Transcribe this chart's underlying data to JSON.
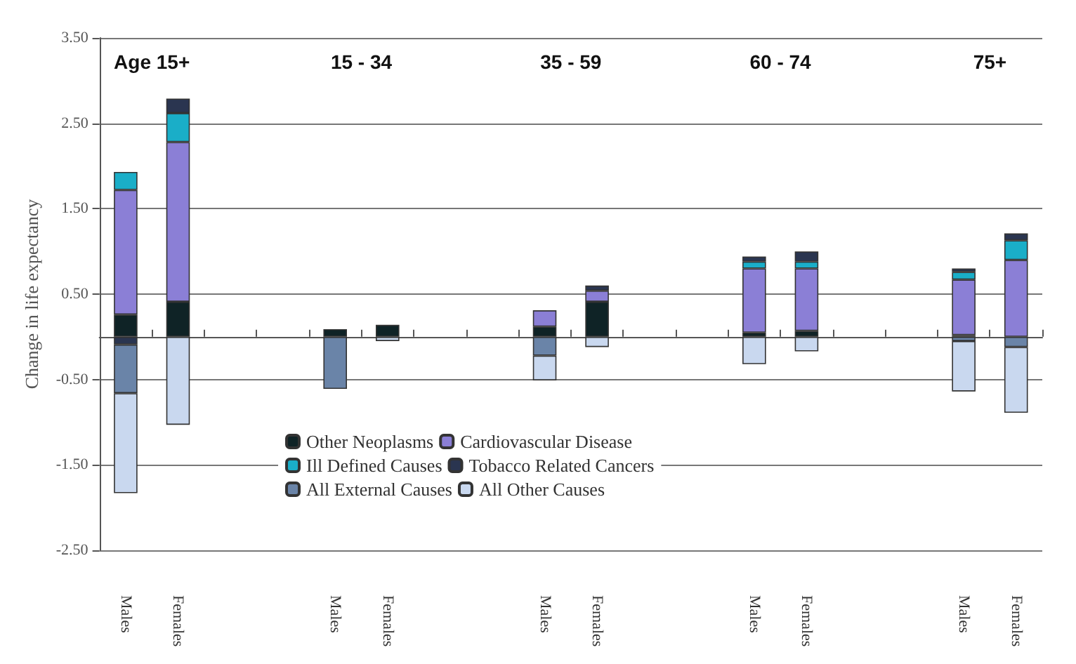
{
  "chart_data": {
    "type": "bar",
    "stacked": true,
    "ylabel": "Change in life expectancy",
    "annotations": [
      "Age 15+",
      "15 - 34",
      "35 - 59",
      "60 - 74",
      "75+"
    ],
    "categories": [
      "Males",
      "Females",
      null,
      null,
      "Males",
      "Females",
      null,
      null,
      "Males",
      "Females",
      null,
      null,
      "Males",
      "Females",
      null,
      null,
      "Males",
      "Females"
    ],
    "series": [
      {
        "name": "Other Neoplasms",
        "color": "#0f2326",
        "values": [
          0.26,
          0.41,
          null,
          null,
          0.09,
          0.14,
          null,
          null,
          0.12,
          0.41,
          null,
          null,
          0.05,
          0.07,
          null,
          null,
          0.02,
          null
        ]
      },
      {
        "name": "Cardiovascular Disease",
        "color": "#8b7fd6",
        "values": [
          1.46,
          1.87,
          null,
          null,
          null,
          null,
          null,
          null,
          0.19,
          0.13,
          null,
          null,
          0.75,
          0.73,
          null,
          null,
          0.65,
          0.9
        ]
      },
      {
        "name": "Ill Defined Causes",
        "color": "#1aaec8",
        "values": [
          0.21,
          0.34,
          null,
          null,
          null,
          null,
          null,
          null,
          null,
          null,
          null,
          null,
          0.08,
          0.08,
          null,
          null,
          0.09,
          0.23
        ]
      },
      {
        "name": "Tobacco Related Cancers",
        "color": "#2a3550",
        "values": [
          -0.09,
          0.17,
          null,
          null,
          null,
          null,
          null,
          null,
          null,
          0.06,
          null,
          null,
          0.06,
          0.12,
          null,
          null,
          0.04,
          0.08
        ]
      },
      {
        "name": "All External Causes",
        "color": "#6a84a8",
        "values": [
          -0.57,
          null,
          null,
          null,
          -0.61,
          null,
          null,
          null,
          -0.22,
          null,
          null,
          null,
          null,
          null,
          null,
          null,
          -0.05,
          -0.12
        ]
      },
      {
        "name": "All Other Causes",
        "color": "#c9d8ef",
        "values": [
          -1.17,
          -1.03,
          null,
          null,
          null,
          -0.05,
          null,
          null,
          -0.29,
          -0.12,
          null,
          null,
          -0.32,
          -0.17,
          null,
          null,
          -0.59,
          -0.77
        ]
      }
    ],
    "ylim": [
      -2.5,
      3.5
    ],
    "yticks": [
      {
        "value": -2.5,
        "label": "-2.50"
      },
      {
        "value": -1.5,
        "label": "-1.50"
      },
      {
        "value": -0.5,
        "label": "-0.50"
      },
      {
        "value": 0.5,
        "label": "0.50"
      },
      {
        "value": 1.5,
        "label": "1.50"
      },
      {
        "value": 2.5,
        "label": "2.50"
      },
      {
        "value": 3.5,
        "label": "3.50"
      }
    ],
    "grid": "y",
    "legend": "bottom"
  }
}
